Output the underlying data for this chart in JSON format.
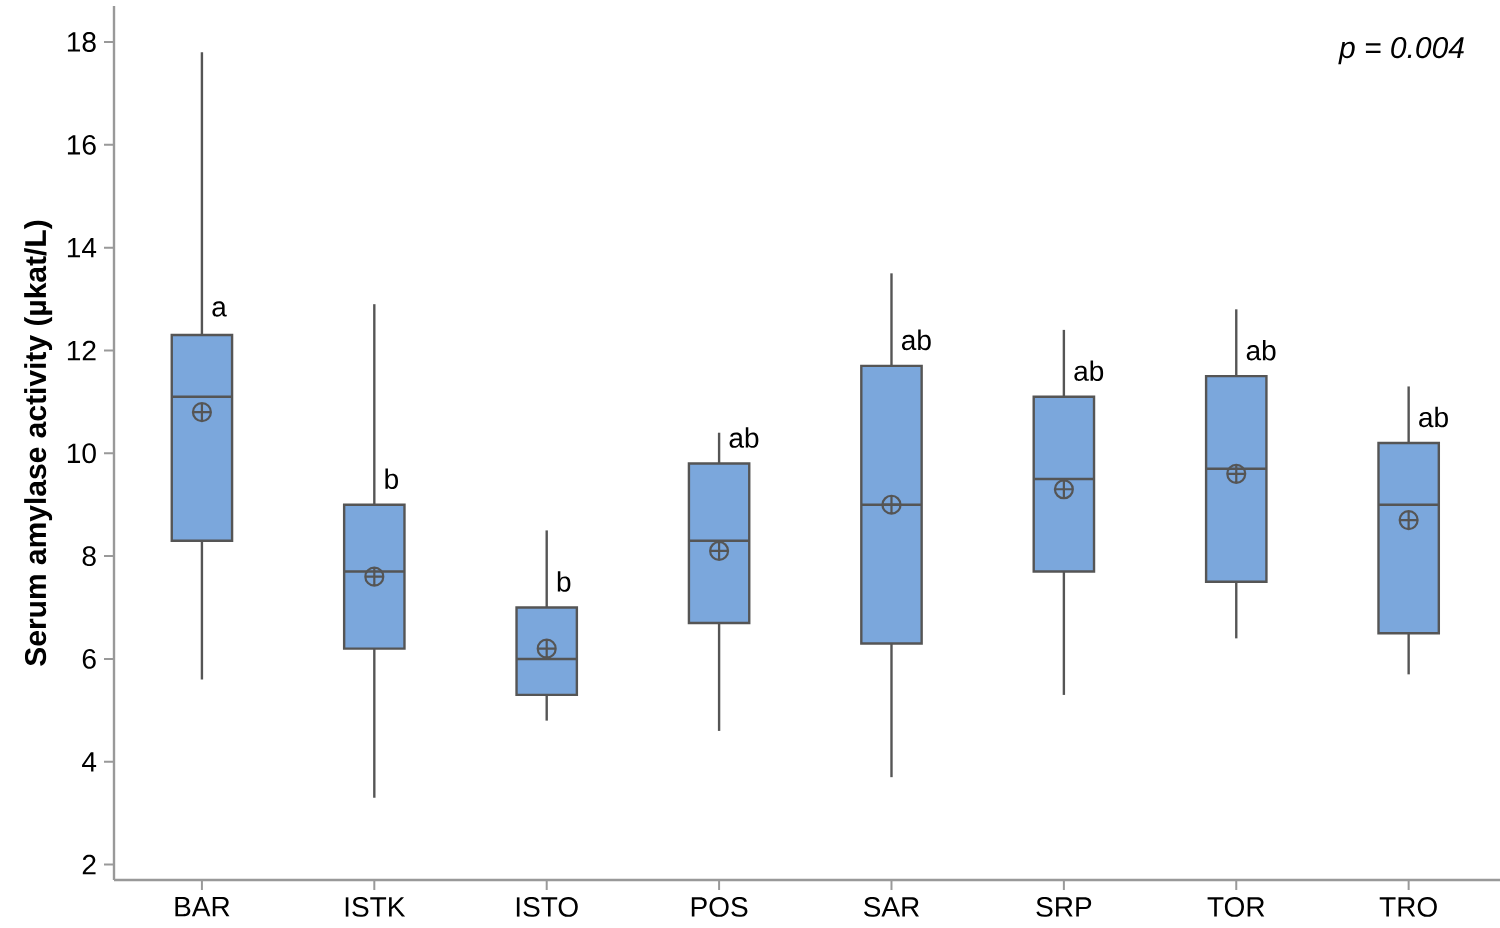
{
  "chart_data": {
    "type": "box",
    "ylabel": "Serum amylase activity (µkat/L)",
    "categories": [
      "BAR",
      "ISTK",
      "ISTO",
      "POS",
      "SAR",
      "SRP",
      "TOR",
      "TRO"
    ],
    "color": "#7ba7dc",
    "boxes": [
      {
        "low": 5.6,
        "q1": 8.3,
        "median": 11.1,
        "q3": 12.3,
        "high": 17.8,
        "mean": 10.8
      },
      {
        "low": 3.3,
        "q1": 6.2,
        "median": 7.7,
        "q3": 9.0,
        "high": 12.9,
        "mean": 7.6
      },
      {
        "low": 4.8,
        "q1": 5.3,
        "median": 6.0,
        "q3": 7.0,
        "high": 8.5,
        "mean": 6.2
      },
      {
        "low": 4.6,
        "q1": 6.7,
        "median": 8.3,
        "q3": 9.8,
        "high": 10.4,
        "mean": 8.1
      },
      {
        "low": 3.7,
        "q1": 6.3,
        "median": 9.0,
        "q3": 11.7,
        "high": 13.5,
        "mean": 9.0
      },
      {
        "low": 5.3,
        "q1": 7.7,
        "median": 9.5,
        "q3": 11.1,
        "high": 12.4,
        "mean": 9.3
      },
      {
        "low": 6.4,
        "q1": 7.5,
        "median": 9.7,
        "q3": 11.5,
        "high": 12.8,
        "mean": 9.6
      },
      {
        "low": 5.7,
        "q1": 6.5,
        "median": 9.0,
        "q3": 10.2,
        "high": 11.3,
        "mean": 8.7
      }
    ],
    "ylim": [
      1.7,
      18.7
    ],
    "yticks": [
      2,
      4,
      6,
      8,
      10,
      12,
      14,
      16,
      18
    ],
    "marker": "circle",
    "annotations": [
      "a",
      "b",
      "b",
      "ab",
      "ab",
      "ab",
      "ab",
      "ab",
      "p = 0.004"
    ]
  }
}
